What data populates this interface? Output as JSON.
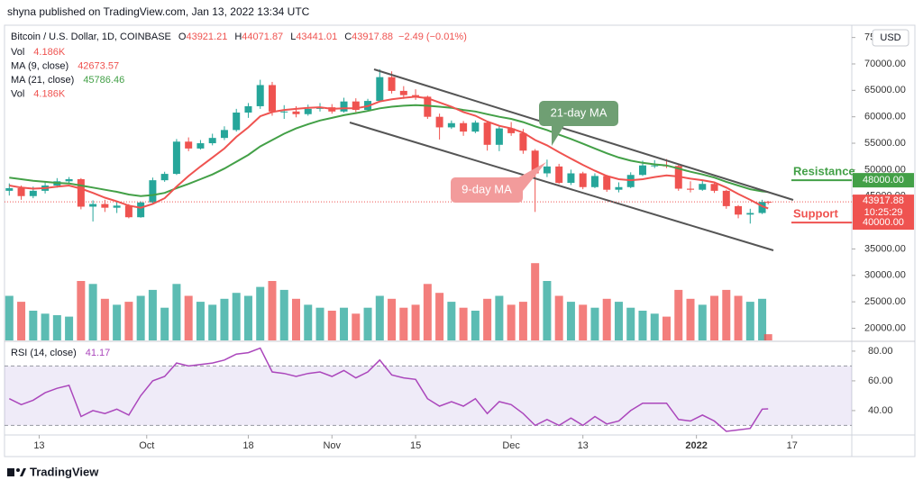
{
  "header": {
    "publisher": "shyna published on TradingView.com, Jan 13, 2022 13:34 UTC",
    "logo": "TradingView"
  },
  "chart_data": {
    "type": "candlestick",
    "symbol": "Bitcoin / U.S. Dollar, 1D, COINBASE",
    "currency": "USD",
    "ohlc_legend": [
      {
        "label": "O",
        "value": 43921.21
      },
      {
        "label": "H",
        "value": 44071.87
      },
      {
        "label": "L",
        "value": 43441.01
      },
      {
        "label": "C",
        "value": 43917.88
      }
    ],
    "change": "−2.49 (−0.01%)",
    "indicators": [
      {
        "name": "Vol",
        "value": "4.186K",
        "color": "#ef5350"
      },
      {
        "name": "MA (9, close)",
        "value": 42673.57,
        "color": "#ef5350"
      },
      {
        "name": "MA (21, close)",
        "value": 45786.46,
        "color": "#43a047"
      },
      {
        "name": "Vol",
        "value": "4.186K",
        "color": "#ef5350"
      }
    ],
    "up_color": "#26a69a",
    "down_color": "#ef5350",
    "candles": [
      {
        "day": 0,
        "open": 46000,
        "high": 47400,
        "low": 45100,
        "close": 46500,
        "volume": 30,
        "ma9": 47000,
        "ma21": 48500,
        "rsi": 48
      },
      {
        "day": 2,
        "open": 46500,
        "high": 47000,
        "low": 44300,
        "close": 45000,
        "volume": 26,
        "ma9": 46600,
        "ma21": 48200,
        "rsi": 44
      },
      {
        "day": 4,
        "open": 45000,
        "high": 46800,
        "low": 44600,
        "close": 46000,
        "volume": 20,
        "ma9": 46400,
        "ma21": 47900,
        "rsi": 47
      },
      {
        "day": 6,
        "open": 46000,
        "high": 47600,
        "low": 45500,
        "close": 47000,
        "volume": 18,
        "ma9": 46500,
        "ma21": 47700,
        "rsi": 52
      },
      {
        "day": 8,
        "open": 47000,
        "high": 48400,
        "low": 46600,
        "close": 47800,
        "volume": 17,
        "ma9": 46800,
        "ma21": 47500,
        "rsi": 55
      },
      {
        "day": 10,
        "open": 47800,
        "high": 48600,
        "low": 47300,
        "close": 48200,
        "volume": 16,
        "ma9": 47000,
        "ma21": 47400,
        "rsi": 57
      },
      {
        "day": 12,
        "open": 48200,
        "high": 48400,
        "low": 42500,
        "close": 43000,
        "volume": 40,
        "ma9": 46400,
        "ma21": 47000,
        "rsi": 36
      },
      {
        "day": 14,
        "open": 43000,
        "high": 44200,
        "low": 40200,
        "close": 43500,
        "volume": 38,
        "ma9": 45600,
        "ma21": 46600,
        "rsi": 40
      },
      {
        "day": 16,
        "open": 43500,
        "high": 44300,
        "low": 42000,
        "close": 42800,
        "volume": 28,
        "ma9": 44700,
        "ma21": 46200,
        "rsi": 38
      },
      {
        "day": 18,
        "open": 42800,
        "high": 44000,
        "low": 41800,
        "close": 43200,
        "volume": 24,
        "ma9": 44000,
        "ma21": 45800,
        "rsi": 41
      },
      {
        "day": 20,
        "open": 43200,
        "high": 43500,
        "low": 40800,
        "close": 41000,
        "volume": 26,
        "ma9": 43200,
        "ma21": 45300,
        "rsi": 37
      },
      {
        "day": 22,
        "open": 41000,
        "high": 44000,
        "low": 40900,
        "close": 43800,
        "volume": 30,
        "ma9": 42800,
        "ma21": 45000,
        "rsi": 50
      },
      {
        "day": 24,
        "open": 43800,
        "high": 48500,
        "low": 43600,
        "close": 48000,
        "volume": 34,
        "ma9": 43500,
        "ma21": 45200,
        "rsi": 60
      },
      {
        "day": 26,
        "open": 48000,
        "high": 49600,
        "low": 47700,
        "close": 49200,
        "volume": 22,
        "ma9": 44600,
        "ma21": 45600,
        "rsi": 63
      },
      {
        "day": 28,
        "open": 49200,
        "high": 55800,
        "low": 49000,
        "close": 55300,
        "volume": 38,
        "ma9": 46800,
        "ma21": 46500,
        "rsi": 72
      },
      {
        "day": 30,
        "open": 55300,
        "high": 56100,
        "low": 53500,
        "close": 54000,
        "volume": 30,
        "ma9": 48800,
        "ma21": 47300,
        "rsi": 70
      },
      {
        "day": 32,
        "open": 54000,
        "high": 55600,
        "low": 53800,
        "close": 55000,
        "volume": 26,
        "ma9": 50600,
        "ma21": 48200,
        "rsi": 71
      },
      {
        "day": 34,
        "open": 55000,
        "high": 56800,
        "low": 54600,
        "close": 56000,
        "volume": 24,
        "ma9": 52300,
        "ma21": 49100,
        "rsi": 72
      },
      {
        "day": 36,
        "open": 56000,
        "high": 58200,
        "low": 55600,
        "close": 57500,
        "volume": 28,
        "ma9": 54000,
        "ma21": 50200,
        "rsi": 74
      },
      {
        "day": 38,
        "open": 57500,
        "high": 61500,
        "low": 57200,
        "close": 60800,
        "volume": 32,
        "ma9": 56200,
        "ma21": 51500,
        "rsi": 78
      },
      {
        "day": 40,
        "open": 60800,
        "high": 62600,
        "low": 59800,
        "close": 62000,
        "volume": 30,
        "ma9": 58000,
        "ma21": 52800,
        "rsi": 79
      },
      {
        "day": 42,
        "open": 62000,
        "high": 67000,
        "low": 61500,
        "close": 66000,
        "volume": 36,
        "ma9": 60100,
        "ma21": 54400,
        "rsi": 82
      },
      {
        "day": 44,
        "open": 66000,
        "high": 66600,
        "low": 60200,
        "close": 61000,
        "volume": 40,
        "ma9": 60900,
        "ma21": 55600,
        "rsi": 66
      },
      {
        "day": 46,
        "open": 61000,
        "high": 62200,
        "low": 59600,
        "close": 61000,
        "volume": 34,
        "ma9": 61300,
        "ma21": 56800,
        "rsi": 65
      },
      {
        "day": 48,
        "open": 61000,
        "high": 62000,
        "low": 59900,
        "close": 60500,
        "volume": 28,
        "ma9": 61500,
        "ma21": 57800,
        "rsi": 63
      },
      {
        "day": 50,
        "open": 60500,
        "high": 62300,
        "low": 60200,
        "close": 61500,
        "volume": 24,
        "ma9": 61700,
        "ma21": 58600,
        "rsi": 65
      },
      {
        "day": 52,
        "open": 61500,
        "high": 62600,
        "low": 61000,
        "close": 61800,
        "volume": 22,
        "ma9": 61800,
        "ma21": 59300,
        "rsi": 66
      },
      {
        "day": 54,
        "open": 61800,
        "high": 62400,
        "low": 60600,
        "close": 61000,
        "volume": 20,
        "ma9": 61500,
        "ma21": 59800,
        "rsi": 63
      },
      {
        "day": 56,
        "open": 61000,
        "high": 63600,
        "low": 60800,
        "close": 62900,
        "volume": 22,
        "ma9": 61600,
        "ma21": 60300,
        "rsi": 67
      },
      {
        "day": 58,
        "open": 62900,
        "high": 63500,
        "low": 60900,
        "close": 61300,
        "volume": 18,
        "ma9": 61600,
        "ma21": 60700,
        "rsi": 62
      },
      {
        "day": 60,
        "open": 61300,
        "high": 63400,
        "low": 61100,
        "close": 63000,
        "volume": 22,
        "ma9": 62000,
        "ma21": 61100,
        "rsi": 66
      },
      {
        "day": 62,
        "open": 63000,
        "high": 69000,
        "low": 62800,
        "close": 67500,
        "volume": 30,
        "ma9": 62900,
        "ma21": 61600,
        "rsi": 74
      },
      {
        "day": 64,
        "open": 67500,
        "high": 68600,
        "low": 64400,
        "close": 64900,
        "volume": 28,
        "ma9": 63300,
        "ma21": 61900,
        "rsi": 64
      },
      {
        "day": 66,
        "open": 64900,
        "high": 65800,
        "low": 63400,
        "close": 64100,
        "volume": 22,
        "ma9": 63600,
        "ma21": 62100,
        "rsi": 62
      },
      {
        "day": 68,
        "open": 64100,
        "high": 65200,
        "low": 63200,
        "close": 63800,
        "volume": 24,
        "ma9": 63800,
        "ma21": 62200,
        "rsi": 61
      },
      {
        "day": 70,
        "open": 63800,
        "high": 64000,
        "low": 59600,
        "close": 60000,
        "volume": 38,
        "ma9": 63500,
        "ma21": 62100,
        "rsi": 48
      },
      {
        "day": 72,
        "open": 60000,
        "high": 60600,
        "low": 55700,
        "close": 58000,
        "volume": 32,
        "ma9": 62700,
        "ma21": 61900,
        "rsi": 43
      },
      {
        "day": 74,
        "open": 58000,
        "high": 59300,
        "low": 57700,
        "close": 58800,
        "volume": 26,
        "ma9": 61900,
        "ma21": 61700,
        "rsi": 46
      },
      {
        "day": 76,
        "open": 58800,
        "high": 59200,
        "low": 56400,
        "close": 57200,
        "volume": 22,
        "ma9": 60900,
        "ma21": 61300,
        "rsi": 43
      },
      {
        "day": 78,
        "open": 57200,
        "high": 59300,
        "low": 56900,
        "close": 58900,
        "volume": 20,
        "ma9": 60200,
        "ma21": 61000,
        "rsi": 48
      },
      {
        "day": 80,
        "open": 58900,
        "high": 59200,
        "low": 53600,
        "close": 54700,
        "volume": 28,
        "ma9": 59100,
        "ma21": 60500,
        "rsi": 38
      },
      {
        "day": 82,
        "open": 54700,
        "high": 58300,
        "low": 53500,
        "close": 57800,
        "volume": 30,
        "ma9": 58300,
        "ma21": 60000,
        "rsi": 46
      },
      {
        "day": 84,
        "open": 57800,
        "high": 59000,
        "low": 56400,
        "close": 56900,
        "volume": 24,
        "ma9": 57800,
        "ma21": 59600,
        "rsi": 44
      },
      {
        "day": 86,
        "open": 56900,
        "high": 57700,
        "low": 53000,
        "close": 53600,
        "volume": 26,
        "ma9": 57000,
        "ma21": 59000,
        "rsi": 38
      },
      {
        "day": 88,
        "open": 53600,
        "high": 53900,
        "low": 42000,
        "close": 49300,
        "volume": 52,
        "ma9": 55600,
        "ma21": 58200,
        "rsi": 30
      },
      {
        "day": 90,
        "open": 49300,
        "high": 51900,
        "low": 48600,
        "close": 50600,
        "volume": 40,
        "ma9": 54600,
        "ma21": 57500,
        "rsi": 34
      },
      {
        "day": 92,
        "open": 50600,
        "high": 51100,
        "low": 47300,
        "close": 47500,
        "volume": 30,
        "ma9": 53300,
        "ma21": 56600,
        "rsi": 30
      },
      {
        "day": 94,
        "open": 47500,
        "high": 50000,
        "low": 47100,
        "close": 49300,
        "volume": 26,
        "ma9": 52100,
        "ma21": 55800,
        "rsi": 35
      },
      {
        "day": 96,
        "open": 49300,
        "high": 49600,
        "low": 46300,
        "close": 46700,
        "volume": 24,
        "ma9": 50900,
        "ma21": 54900,
        "rsi": 30
      },
      {
        "day": 98,
        "open": 46700,
        "high": 49300,
        "low": 46500,
        "close": 48800,
        "volume": 22,
        "ma9": 49800,
        "ma21": 54000,
        "rsi": 36
      },
      {
        "day": 100,
        "open": 48800,
        "high": 49000,
        "low": 45800,
        "close": 46200,
        "volume": 28,
        "ma9": 48800,
        "ma21": 53100,
        "rsi": 31
      },
      {
        "day": 102,
        "open": 46200,
        "high": 47600,
        "low": 45700,
        "close": 46700,
        "volume": 26,
        "ma9": 48200,
        "ma21": 52300,
        "rsi": 33
      },
      {
        "day": 104,
        "open": 46700,
        "high": 49500,
        "low": 46500,
        "close": 49000,
        "volume": 22,
        "ma9": 48000,
        "ma21": 51700,
        "rsi": 40
      },
      {
        "day": 106,
        "open": 49000,
        "high": 51700,
        "low": 48800,
        "close": 50800,
        "volume": 20,
        "ma9": 48200,
        "ma21": 51300,
        "rsi": 45
      },
      {
        "day": 108,
        "open": 50800,
        "high": 51800,
        "low": 50300,
        "close": 50800,
        "volume": 18,
        "ma9": 48600,
        "ma21": 51000,
        "rsi": 45
      },
      {
        "day": 110,
        "open": 50800,
        "high": 52000,
        "low": 50300,
        "close": 50700,
        "volume": 16,
        "ma9": 48900,
        "ma21": 50800,
        "rsi": 45
      },
      {
        "day": 112,
        "open": 50700,
        "high": 51000,
        "low": 46000,
        "close": 46400,
        "volume": 34,
        "ma9": 48700,
        "ma21": 50200,
        "rsi": 34
      },
      {
        "day": 114,
        "open": 46400,
        "high": 47800,
        "low": 45700,
        "close": 46200,
        "volume": 28,
        "ma9": 48300,
        "ma21": 49600,
        "rsi": 33
      },
      {
        "day": 116,
        "open": 46200,
        "high": 47900,
        "low": 46000,
        "close": 47300,
        "volume": 24,
        "ma9": 48000,
        "ma21": 49100,
        "rsi": 37
      },
      {
        "day": 118,
        "open": 47300,
        "high": 47600,
        "low": 45600,
        "close": 46000,
        "volume": 30,
        "ma9": 47600,
        "ma21": 48500,
        "rsi": 33
      },
      {
        "day": 120,
        "open": 46000,
        "high": 46200,
        "low": 42600,
        "close": 43100,
        "volume": 34,
        "ma9": 46600,
        "ma21": 47700,
        "rsi": 26
      },
      {
        "day": 122,
        "open": 43100,
        "high": 43300,
        "low": 40800,
        "close": 41500,
        "volume": 30,
        "ma9": 45400,
        "ma21": 47000,
        "rsi": 27
      },
      {
        "day": 124,
        "open": 41500,
        "high": 42600,
        "low": 39800,
        "close": 41800,
        "volume": 26,
        "ma9": 44300,
        "ma21": 46300,
        "rsi": 28
      },
      {
        "day": 126,
        "open": 41800,
        "high": 44300,
        "low": 41600,
        "close": 43900,
        "volume": 28,
        "ma9": 43100,
        "ma21": 45900,
        "rsi": 41
      },
      {
        "day": 127,
        "open": 43921.21,
        "high": 44071.87,
        "low": 43441.01,
        "close": 43917.88,
        "volume": 4.186,
        "ma9": 42673.57,
        "ma21": 45786.46,
        "rsi": 41.17
      }
    ],
    "xlim": [
      -0.8,
      141
    ],
    "xticks": [
      {
        "value": 5,
        "label": "13"
      },
      {
        "value": 23,
        "label": "Oct"
      },
      {
        "value": 40,
        "label": "18"
      },
      {
        "value": 54,
        "label": "Nov"
      },
      {
        "value": 68,
        "label": "15"
      },
      {
        "value": 84,
        "label": "Dec"
      },
      {
        "value": 96,
        "label": "13"
      },
      {
        "value": 115,
        "label": "2022"
      },
      {
        "value": 131,
        "label": "17"
      }
    ],
    "ylim": [
      17700,
      76130
    ],
    "yticks": [
      {
        "value": 75000,
        "label": "75000.00"
      },
      {
        "value": 70000,
        "label": "70000.00"
      },
      {
        "value": 65000,
        "label": "65000.00"
      },
      {
        "value": 60000,
        "label": "60000.00"
      },
      {
        "value": 55000,
        "label": "55000.00"
      },
      {
        "value": 50000,
        "label": "50000.00"
      },
      {
        "value": 45000,
        "label": "45000.00"
      },
      {
        "value": 40000,
        "label": "40000.00"
      },
      {
        "value": 35000,
        "label": "35000.00"
      },
      {
        "value": 30000,
        "label": "30000.00"
      },
      {
        "value": 25000,
        "label": "25000.00"
      },
      {
        "value": 20000,
        "label": "20000.00"
      }
    ],
    "volume_ylim": [
      0,
      60
    ],
    "last_price": {
      "value": 43917.88,
      "label": "43917.88",
      "countdown": "10:25:29"
    },
    "levels": [
      {
        "name": "Resistance",
        "value": 48000,
        "label": "48000.00",
        "color": "#43a047"
      },
      {
        "name": "Support",
        "value": 40000,
        "label": "40000.00",
        "color": "#ef5350"
      }
    ],
    "annotations": [
      {
        "text": "21-day MA",
        "color": "#6f9f73"
      },
      {
        "text": "9-day MA",
        "color": "#f29b9b"
      }
    ],
    "rsi": {
      "name": "RSI (14, close)",
      "value": 41.17,
      "color": "#ab47bc",
      "ylim": [
        23.6,
        86
      ],
      "yticks": [
        {
          "value": 80,
          "label": "80.00"
        },
        {
          "value": 60,
          "label": "60.00"
        },
        {
          "value": 40,
          "label": "40.00"
        }
      ],
      "band": [
        30,
        70
      ]
    }
  }
}
